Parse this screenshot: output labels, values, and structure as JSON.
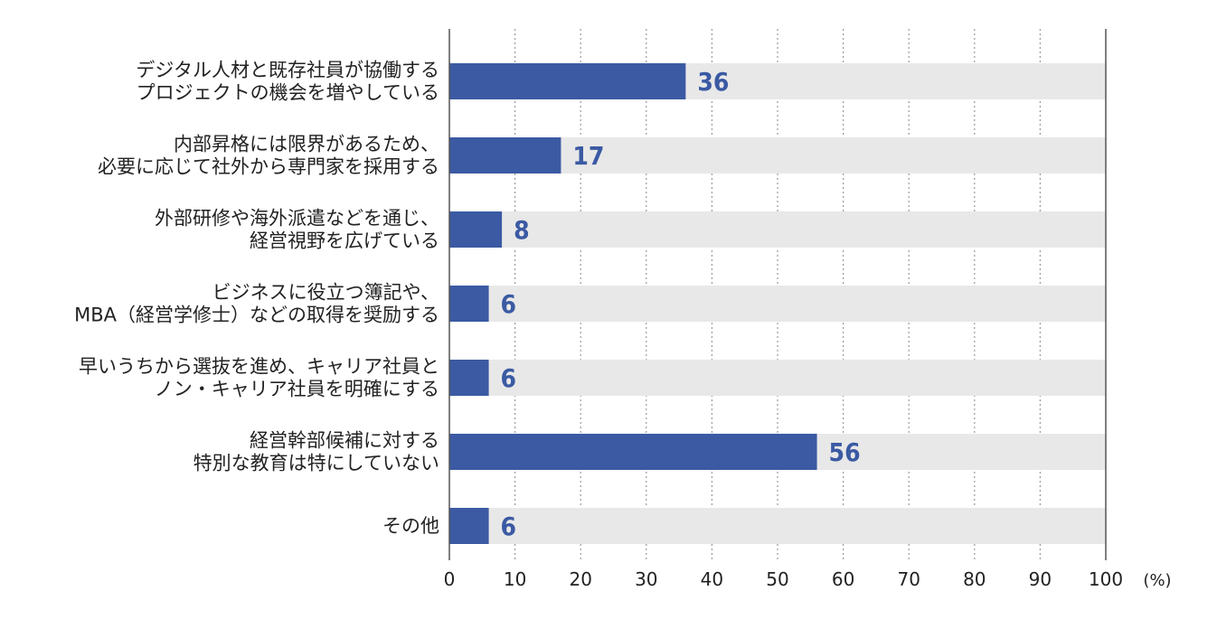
{
  "chart_data": {
    "type": "bar",
    "orientation": "horizontal",
    "categories": [
      [
        "デジタル人材と既存社員が協働する",
        "プロジェクトの機会を増やしている"
      ],
      [
        "内部昇格には限界があるため、",
        "必要に応じて社外から専門家を採用する"
      ],
      [
        "外部研修や海外派遣などを通じ、",
        "経営視野を広げている"
      ],
      [
        "ビジネスに役立つ簿記や、",
        "MBA（経営学修士）などの取得を奨励する"
      ],
      [
        "早いうちから選抜を進め、キャリア社員と",
        "ノン・キャリア社員を明確にする"
      ],
      [
        "経営幹部候補に対する",
        "特別な教育は特にしていない"
      ],
      [
        "その他"
      ]
    ],
    "values": [
      36,
      17,
      8,
      6,
      6,
      56,
      6
    ],
    "value_labels": [
      "36",
      "17",
      "8",
      "6",
      "6",
      "56",
      "6"
    ],
    "xlim": [
      0,
      100
    ],
    "xticks": [
      0,
      10,
      20,
      30,
      40,
      50,
      60,
      70,
      80,
      90,
      100
    ],
    "xtick_labels": [
      "0",
      "10",
      "20",
      "30",
      "40",
      "50",
      "60",
      "70",
      "80",
      "90",
      "100"
    ],
    "unit_label": "(%)",
    "grid": true,
    "grid_style": "dotted-vertical",
    "legend": "none",
    "colors": {
      "bar": "#3b5aa3",
      "track": "#e8e8e8",
      "value_text": "#3b5aa3",
      "grid": "#9a9a9a",
      "axis": "#555555",
      "text": "#222222"
    }
  }
}
